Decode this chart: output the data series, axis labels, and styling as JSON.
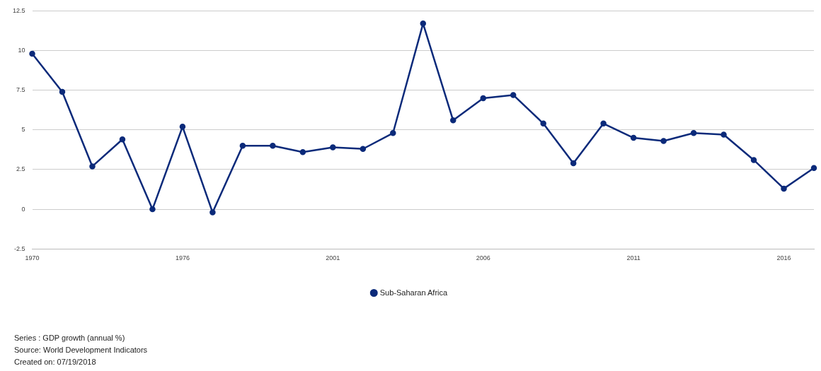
{
  "chart_data": {
    "type": "line",
    "categories": [
      "1970",
      null,
      null,
      null,
      null,
      "1976",
      null,
      null,
      null,
      null,
      "2001",
      null,
      null,
      null,
      null,
      "2006",
      null,
      null,
      null,
      null,
      "2011",
      null,
      null,
      null,
      null,
      "2016",
      null
    ],
    "series": [
      {
        "name": "Sub-Saharan Africa",
        "color": "#0b2a7a",
        "values": [
          9.8,
          7.4,
          2.7,
          4.4,
          0,
          5.2,
          -0.2,
          4.0,
          4.0,
          3.6,
          3.9,
          3.8,
          4.8,
          11.7,
          5.6,
          7.0,
          7.2,
          5.4,
          2.9,
          5.4,
          4.5,
          4.3,
          4.8,
          4.7,
          3.1,
          1.3,
          2.6
        ]
      }
    ],
    "ylim": [
      -2.5,
      12.5
    ],
    "yticks": [
      -2.5,
      0,
      2.5,
      5,
      7.5,
      10,
      12.5
    ],
    "grid": "y",
    "legend": "bottom",
    "marker": "circle",
    "line_style": "solid",
    "annotations": [
      "Series : GDP growth (annual %)",
      "Source: World Development Indicators",
      "Created on: 07/19/2018"
    ]
  }
}
